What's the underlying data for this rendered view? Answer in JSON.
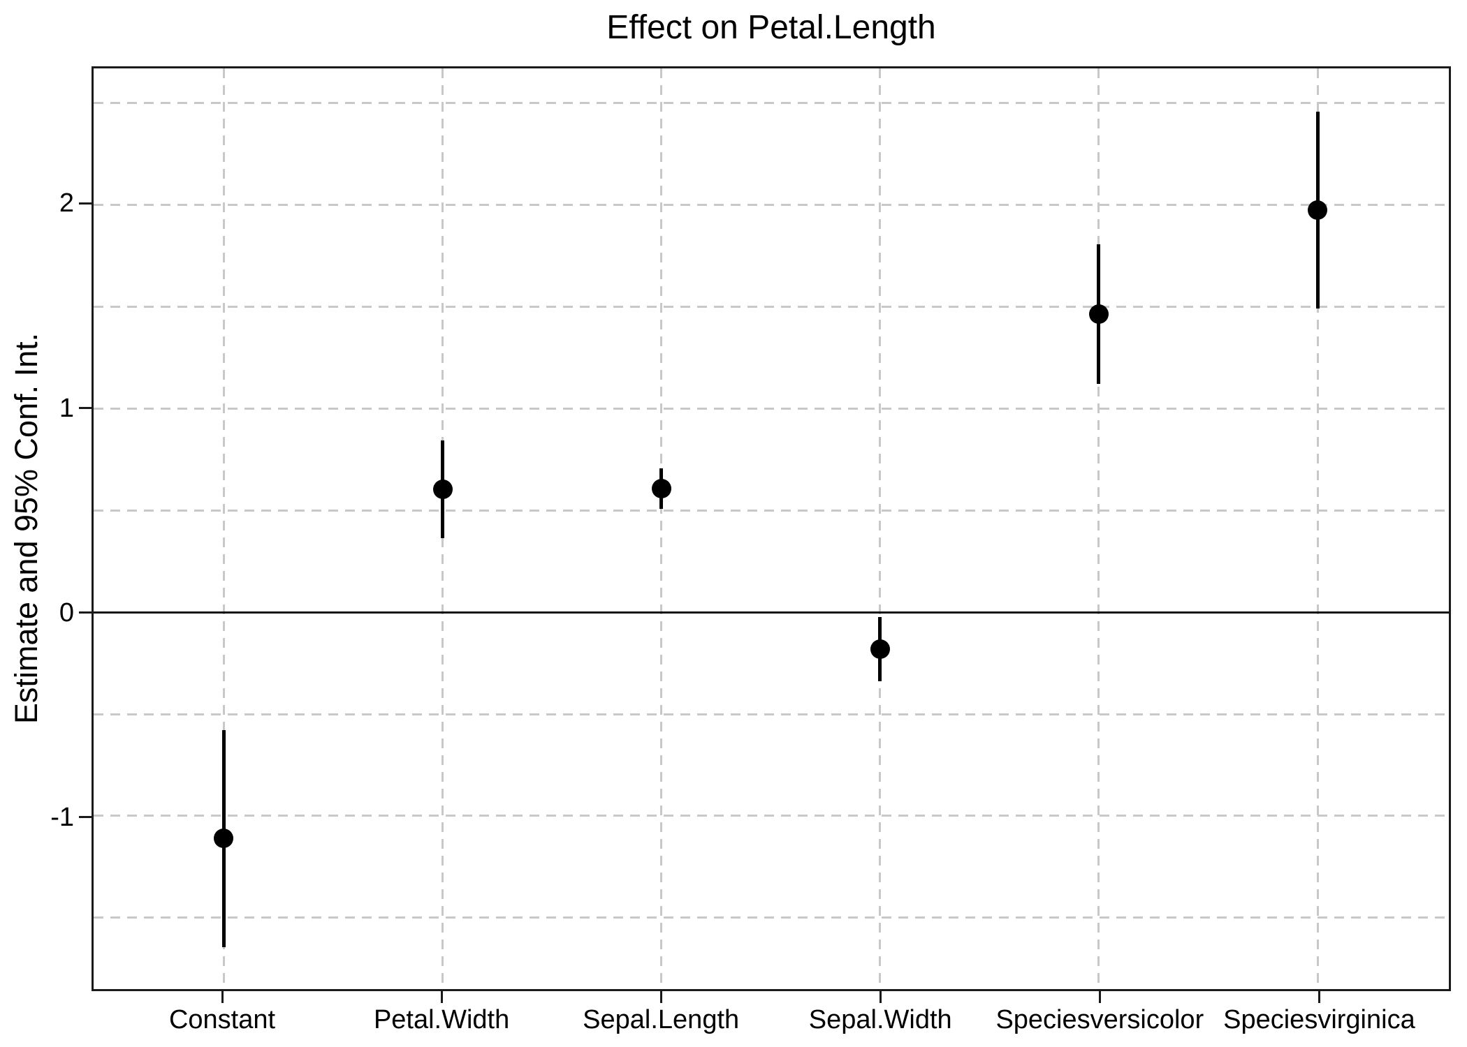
{
  "title": "Effect on Petal.Length",
  "y_axis": {
    "label": "Estimate and 95% Conf. Int.",
    "tick_labels": [
      "-1",
      "0",
      "1",
      "2"
    ]
  },
  "x_axis": {
    "labels": [
      "Constant",
      "Petal.Width",
      "Sepal.Length",
      "Sepal.Width",
      "Speciesversicolor",
      "Speciesvirginica"
    ]
  },
  "chart_data": {
    "type": "scatter",
    "subtype": "coefficient-pointrange",
    "title": "Effect on Petal.Length",
    "xlabel": "",
    "ylabel": "Estimate and 95% Conf. Int.",
    "categories": [
      "Constant",
      "Petal.Width",
      "Sepal.Length",
      "Sepal.Width",
      "Speciesversicolor",
      "Speciesvirginica"
    ],
    "series": [
      {
        "name": "Estimate",
        "values": [
          -1.111,
          0.602,
          0.608,
          -0.181,
          1.463,
          1.974
        ]
      }
    ],
    "ci_low": [
      -1.644,
      0.362,
      0.509,
      -0.339,
      1.121,
      1.49
    ],
    "ci_high": [
      -0.577,
      0.842,
      0.707,
      -0.022,
      1.806,
      2.458
    ],
    "ylim": [
      -1.85,
      2.67
    ],
    "yticks": [
      -1,
      0,
      1,
      2
    ],
    "gridlines_y": [
      -1.5,
      -1,
      -0.5,
      0,
      0.5,
      1,
      1.5,
      2,
      2.5
    ],
    "zero_line_y": 0,
    "grid": "dashed",
    "legend": "none"
  },
  "colors": {
    "point": "#000000",
    "error_bar": "#000000",
    "zero_line": "#111111",
    "grid": "#c8c8c8",
    "panel_border": "#1a1a1a",
    "background": "#ffffff",
    "text": "#000000"
  }
}
